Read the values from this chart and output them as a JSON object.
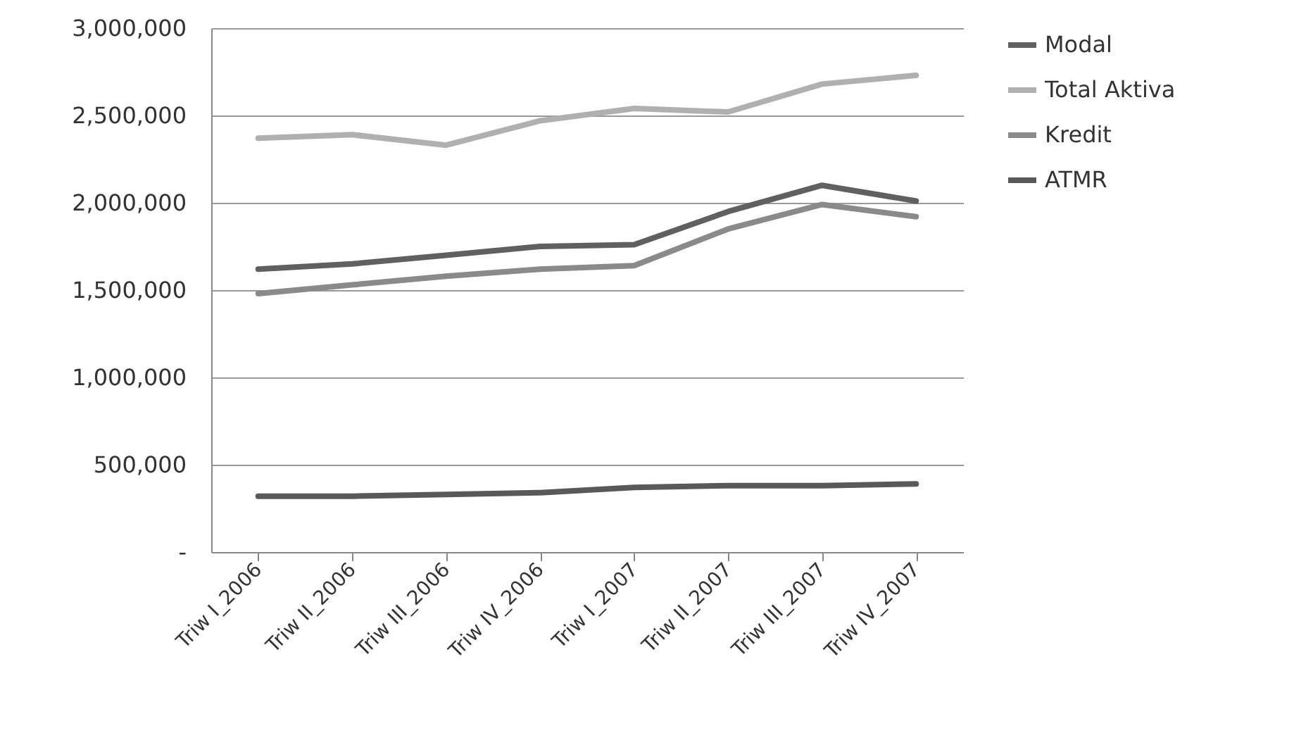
{
  "chart_data": {
    "type": "line",
    "categories": [
      "Triw I_2006",
      "Triw II_2006",
      "Triw III_2006",
      "Triw IV_2006",
      "Triw I_2007",
      "Triw II_2007",
      "Triw III_2007",
      "Triw IV_2007"
    ],
    "series": [
      {
        "name": "Modal",
        "color": "#606060",
        "values": [
          1620000,
          1650000,
          1700000,
          1750000,
          1760000,
          1950000,
          2100000,
          2010000
        ]
      },
      {
        "name": "Total Aktiva",
        "color": "#b0b0b0",
        "values": [
          2370000,
          2390000,
          2330000,
          2470000,
          2540000,
          2520000,
          2680000,
          2730000
        ]
      },
      {
        "name": "Kredit",
        "color": "#8a8a8a",
        "values": [
          1480000,
          1530000,
          1580000,
          1620000,
          1640000,
          1850000,
          1990000,
          1920000
        ]
      },
      {
        "name": "ATMR",
        "color": "#595959",
        "values": [
          320000,
          320000,
          330000,
          340000,
          370000,
          380000,
          380000,
          390000
        ]
      }
    ],
    "ylim": [
      0,
      3000000
    ],
    "yticks": [
      {
        "value": 0,
        "label": "-"
      },
      {
        "value": 500000,
        "label": "500,000"
      },
      {
        "value": 1000000,
        "label": "1,000,000"
      },
      {
        "value": 1500000,
        "label": "1,500,000"
      },
      {
        "value": 2000000,
        "label": "2,000,000"
      },
      {
        "value": 2500000,
        "label": "2,500,000"
      },
      {
        "value": 3000000,
        "label": "3,000,000"
      }
    ],
    "grid": "y",
    "legend": "right",
    "line_style": "solid",
    "marker": "none"
  }
}
